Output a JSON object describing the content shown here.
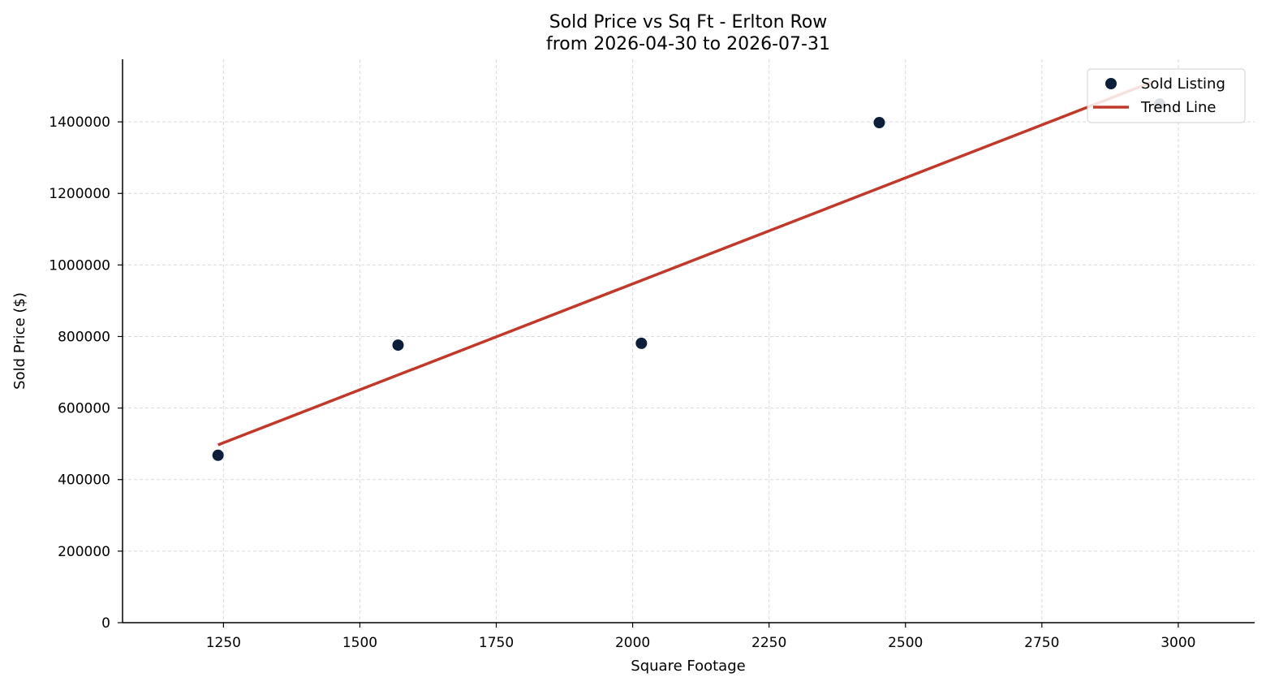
{
  "chart_data": {
    "type": "scatter",
    "title": "Sold Price vs Sq Ft - Erlton Row",
    "subtitle": "from 2026-04-30 to 2026-07-31",
    "xlabel": "Square Footage",
    "ylabel": "Sold Price ($)",
    "xlim": [
      1065,
      3140
    ],
    "ylim": [
      0,
      1575000
    ],
    "xticks": [
      1250,
      1500,
      1750,
      2000,
      2250,
      2500,
      2750,
      3000
    ],
    "yticks": [
      0,
      200000,
      400000,
      600000,
      800000,
      1000000,
      1200000,
      1400000
    ],
    "grid": true,
    "legend_position": "top-right",
    "colors": {
      "points": "#0b1f3a",
      "trend": "#c0392b",
      "grid": "#d9d9d9"
    },
    "series": [
      {
        "name": "Sold Listing",
        "kind": "scatter",
        "x": [
          1240,
          1570,
          2016,
          2452,
          2966
        ],
        "y": [
          468000,
          776000,
          781000,
          1398000,
          1450000
        ]
      },
      {
        "name": "Trend Line",
        "kind": "line",
        "x": [
          1240,
          2950
        ],
        "y": [
          497000,
          1510000
        ]
      }
    ]
  }
}
